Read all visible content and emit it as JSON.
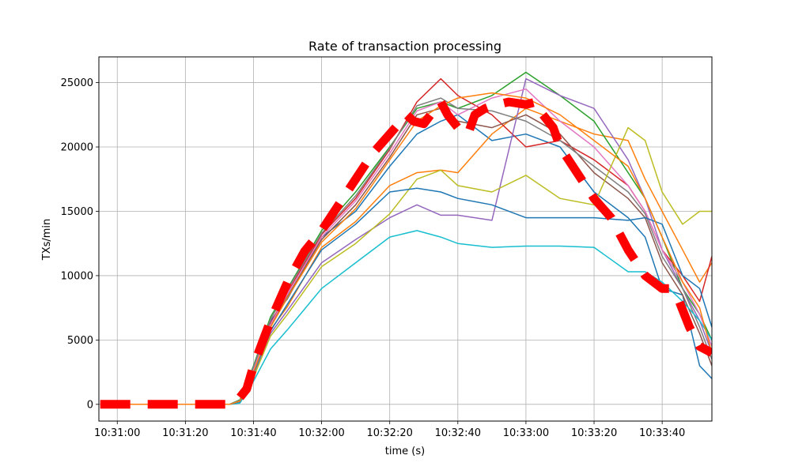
{
  "chart_data": {
    "type": "line",
    "title": "Rate of transaction processing",
    "xlabel": "time (s)",
    "ylabel": "TXs/min",
    "x_tick_labels": [
      "10:31:00",
      "10:31:20",
      "10:31:40",
      "10:32:00",
      "10:32:20",
      "10:32:40",
      "10:33:00",
      "10:33:20",
      "10:33:40"
    ],
    "x_tick_seconds": [
      60,
      80,
      100,
      120,
      140,
      160,
      180,
      200,
      220
    ],
    "xlim": [
      54.6,
      234.6
    ],
    "ylim": [
      -1300,
      27000
    ],
    "y_ticks": [
      0,
      5000,
      10000,
      15000,
      20000,
      25000
    ],
    "y_tick_labels": [
      "0",
      "5000",
      "10000",
      "15000",
      "20000",
      "25000"
    ],
    "grid": true,
    "colors": [
      "#1f77b4",
      "#ff7f0e",
      "#2ca02c",
      "#d62728",
      "#9467bd",
      "#8c564b",
      "#e377c2",
      "#7f7f7f",
      "#bcbd22",
      "#17becf"
    ],
    "series": [
      {
        "x": [
          55,
          93,
          96,
          100,
          105,
          110,
          120,
          130,
          140,
          148,
          155,
          160,
          170,
          180,
          190,
          200,
          210,
          215,
          220,
          226,
          231,
          234.6
        ],
        "values": [
          0,
          0,
          300,
          2500,
          6500,
          8200,
          13000,
          15000,
          18500,
          21000,
          22000,
          22500,
          20500,
          21000,
          20000,
          16500,
          14500,
          13000,
          9000,
          8500,
          3000,
          2000
        ]
      },
      {
        "x": [
          55,
          93,
          96,
          100,
          105,
          110,
          120,
          130,
          140,
          148,
          155,
          160,
          170,
          180,
          190,
          200,
          210,
          215,
          220,
          226,
          231,
          234.6
        ],
        "values": [
          0,
          0,
          200,
          2000,
          5800,
          7600,
          12200,
          14200,
          17000,
          18000,
          18200,
          18000,
          21000,
          23000,
          22000,
          21000,
          20500,
          17500,
          15000,
          12000,
          9500,
          11000
        ]
      },
      {
        "x": [
          55,
          93,
          96,
          100,
          105,
          110,
          120,
          130,
          140,
          148,
          155,
          160,
          170,
          180,
          190,
          200,
          210,
          215,
          220,
          226,
          231,
          234.6
        ],
        "values": [
          0,
          0,
          350,
          3000,
          6800,
          9000,
          13500,
          16500,
          20000,
          23000,
          23500,
          23000,
          24000,
          25800,
          24000,
          22000,
          18000,
          16000,
          13000,
          9000,
          7000,
          5000
        ]
      },
      {
        "x": [
          55,
          93,
          96,
          100,
          105,
          110,
          120,
          130,
          140,
          148,
          155,
          160,
          170,
          180,
          190,
          200,
          210,
          215,
          220,
          226,
          231,
          234.6
        ],
        "values": [
          0,
          0,
          250,
          2800,
          6300,
          8700,
          13200,
          16000,
          19800,
          23500,
          25300,
          24000,
          22500,
          20000,
          20500,
          19000,
          17000,
          15000,
          12000,
          10000,
          8000,
          11500
        ]
      },
      {
        "x": [
          55,
          93,
          96,
          100,
          105,
          110,
          120,
          130,
          140,
          148,
          155,
          160,
          170,
          180,
          190,
          200,
          210,
          215,
          220,
          226,
          231,
          234.6
        ],
        "values": [
          0,
          0,
          200,
          2300,
          5500,
          7300,
          11000,
          12800,
          14500,
          15500,
          14700,
          14700,
          14300,
          25300,
          24000,
          23000,
          19000,
          16000,
          12000,
          9000,
          6500,
          4000
        ]
      },
      {
        "x": [
          55,
          93,
          96,
          100,
          105,
          110,
          120,
          130,
          140,
          148,
          155,
          160,
          170,
          180,
          190,
          200,
          210,
          215,
          220,
          226,
          231,
          234.6
        ],
        "values": [
          0,
          0,
          300,
          2600,
          6100,
          8400,
          12800,
          15500,
          19200,
          22500,
          23000,
          22000,
          21500,
          22500,
          21000,
          18000,
          16000,
          14500,
          11000,
          8500,
          5500,
          3000
        ]
      },
      {
        "x": [
          55,
          93,
          96,
          100,
          105,
          110,
          120,
          130,
          140,
          148,
          155,
          160,
          170,
          180,
          190,
          200,
          210,
          215,
          220,
          226,
          231,
          234.6
        ],
        "values": [
          0,
          0,
          250,
          2700,
          6200,
          8600,
          13000,
          15800,
          19500,
          22800,
          23500,
          22500,
          23800,
          24500,
          22000,
          20000,
          17000,
          15000,
          12000,
          9500,
          7000,
          4500
        ]
      },
      {
        "x": [
          55,
          93,
          96,
          100,
          105,
          110,
          120,
          130,
          140,
          148,
          155,
          160,
          170,
          180,
          190,
          200,
          210,
          215,
          220,
          226,
          231,
          234.6
        ],
        "values": [
          0,
          0,
          300,
          2900,
          6600,
          8900,
          13300,
          16200,
          19900,
          23200,
          23800,
          23000,
          22800,
          22000,
          20500,
          18500,
          16500,
          14800,
          11500,
          9000,
          6000,
          3500
        ]
      },
      {
        "x": [
          55,
          93,
          96,
          100,
          105,
          110,
          120,
          130,
          140,
          148,
          155,
          160,
          170,
          180,
          190,
          200,
          210,
          215,
          220,
          226,
          231,
          234.6
        ],
        "values": [
          0,
          0,
          150,
          2100,
          5300,
          7000,
          10700,
          12500,
          14800,
          17500,
          18200,
          17000,
          16500,
          17800,
          16000,
          15500,
          21500,
          20500,
          16500,
          14000,
          15000,
          15000
        ]
      },
      {
        "x": [
          55,
          93,
          96,
          100,
          105,
          110,
          120,
          130,
          140,
          148,
          155,
          160,
          170,
          180,
          190,
          200,
          210,
          215,
          220,
          226,
          231,
          234.6
        ],
        "values": [
          0,
          0,
          100,
          1800,
          4300,
          5800,
          9000,
          11000,
          13000,
          13500,
          13000,
          12500,
          12200,
          12300,
          12300,
          12200,
          10300,
          10300,
          9500,
          8000,
          6500,
          5000
        ]
      },
      {
        "x": [
          55,
          93,
          96,
          100,
          105,
          110,
          120,
          130,
          140,
          148,
          155,
          160,
          170,
          180,
          190,
          200,
          210,
          215,
          220,
          226,
          231,
          234.6
        ],
        "values": [
          0,
          0,
          200,
          2400,
          5700,
          7800,
          12000,
          14000,
          16500,
          16800,
          16500,
          16000,
          15500,
          14500,
          14500,
          14500,
          14300,
          14500,
          14000,
          10000,
          9000,
          6000
        ]
      },
      {
        "x": [
          55,
          93,
          96,
          100,
          105,
          110,
          120,
          130,
          140,
          148,
          155,
          160,
          170,
          180,
          190,
          200,
          210,
          215,
          220,
          226,
          231,
          234.6
        ],
        "values": [
          0,
          0,
          250,
          2500,
          6000,
          8300,
          12600,
          15200,
          19000,
          22000,
          23200,
          23800,
          24200,
          23800,
          22500,
          20500,
          18500,
          16000,
          13000,
          9500,
          7500,
          4000
        ]
      }
    ],
    "mean_series": {
      "x": [
        55,
        90,
        93,
        95,
        98,
        100,
        105,
        110,
        115,
        120,
        125,
        130,
        135,
        140,
        145,
        147,
        150,
        152,
        155,
        157,
        160,
        163,
        165,
        168,
        170,
        175,
        180,
        183,
        185,
        188,
        190,
        195,
        200,
        205,
        210,
        215,
        220,
        222,
        225,
        228,
        231,
        234.6
      ],
      "values": [
        0,
        0,
        0,
        200,
        1200,
        3000,
        6500,
        9500,
        11900,
        13500,
        15500,
        17500,
        19500,
        21000,
        22500,
        22000,
        21800,
        22500,
        23500,
        22500,
        21500,
        21000,
        22500,
        23000,
        23200,
        23500,
        23300,
        23500,
        22500,
        21500,
        20000,
        18000,
        16000,
        14500,
        12000,
        10000,
        9000,
        9000,
        8000,
        6000,
        4500,
        4000
      ],
      "color": "#ff0000",
      "style": "dashed"
    }
  }
}
